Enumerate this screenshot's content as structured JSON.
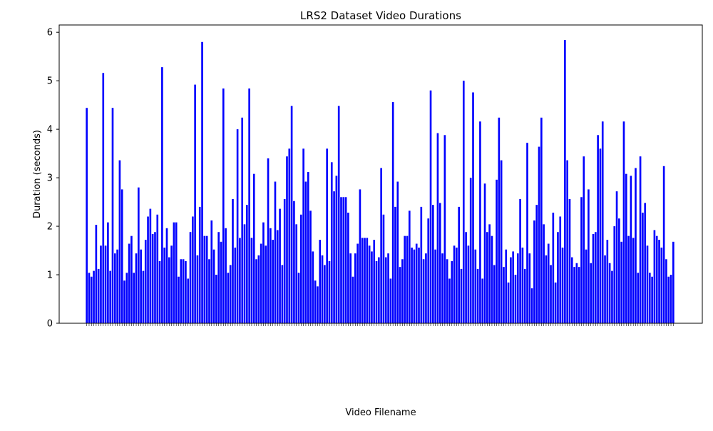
{
  "chart_data": {
    "type": "bar",
    "title": "LRS2 Dataset Video Durations",
    "xlabel": "Video Filename",
    "ylabel": "Duration (seconds)",
    "ylim": [
      0,
      6.15
    ],
    "yticks": [
      0,
      1,
      2,
      3,
      4,
      5,
      6
    ],
    "grid": false,
    "legend": "none",
    "bar_color": "#0000ff",
    "series": [
      {
        "values": [
          4.44,
          1.04,
          0.96,
          1.08,
          2.03,
          1.12,
          1.6,
          5.16,
          1.6,
          2.08,
          1.08,
          4.44,
          1.44,
          1.52,
          3.36,
          2.76,
          0.88,
          1.04,
          1.64,
          1.8,
          1.04,
          1.44,
          2.8,
          1.52,
          1.08,
          1.72,
          2.2,
          2.36,
          1.84,
          1.88,
          2.24,
          1.28,
          5.28,
          1.56,
          1.96,
          1.36,
          1.6,
          2.08,
          2.08,
          0.96,
          1.32,
          1.32,
          1.28,
          0.92,
          1.88,
          2.2,
          4.92,
          1.4,
          2.4,
          5.8,
          1.8,
          1.8,
          1.32,
          2.12,
          1.52,
          1.0,
          1.88,
          1.68,
          4.84,
          1.96,
          1.04,
          1.2,
          2.56,
          1.56,
          4.0,
          1.76,
          4.24,
          2.04,
          2.44,
          4.84,
          1.76,
          3.08,
          1.32,
          1.4,
          1.64,
          2.08,
          1.6,
          3.4,
          1.96,
          1.72,
          2.92,
          1.92,
          2.36,
          1.2,
          2.56,
          3.44,
          3.6,
          4.48,
          2.52,
          2.04,
          1.04,
          2.24,
          3.6,
          2.92,
          3.12,
          2.32,
          1.48,
          0.88,
          0.76,
          1.72,
          1.4,
          1.2,
          3.6,
          1.28,
          3.32,
          2.72,
          3.04,
          4.48,
          2.6,
          2.6,
          2.6,
          2.28,
          1.44,
          0.96,
          1.44,
          1.64,
          2.76,
          1.76,
          1.76,
          1.76,
          1.6,
          1.48,
          1.72,
          1.28,
          1.36,
          3.2,
          2.24,
          1.36,
          1.44,
          0.92,
          4.56,
          2.4,
          2.92,
          1.16,
          1.32,
          1.8,
          1.8,
          2.32,
          1.56,
          1.52,
          1.64,
          1.56,
          2.4,
          1.32,
          1.44,
          2.16,
          4.8,
          2.44,
          1.52,
          3.92,
          2.48,
          1.44,
          3.88,
          1.32,
          0.92,
          1.28,
          1.6,
          1.56,
          2.4,
          1.12,
          5.0,
          1.88,
          1.6,
          3.0,
          4.76,
          1.52,
          1.12,
          4.16,
          0.92,
          2.88,
          1.88,
          2.04,
          1.8,
          1.2,
          2.96,
          4.24,
          3.36,
          1.16,
          1.52,
          0.84,
          1.36,
          1.48,
          1.0,
          1.44,
          2.56,
          1.56,
          1.12,
          3.72,
          1.44,
          0.72,
          2.12,
          2.44,
          3.64,
          4.24,
          2.04,
          1.4,
          1.64,
          1.2,
          2.28,
          0.84,
          1.88,
          2.2,
          1.56,
          5.84,
          3.36,
          2.56,
          1.36,
          1.16,
          1.24,
          1.16,
          2.6,
          3.44,
          1.52,
          2.76,
          1.24,
          1.84,
          1.88,
          3.88,
          3.6,
          4.16,
          1.4,
          1.72,
          1.24,
          1.08,
          2.0,
          2.72,
          2.16,
          1.68,
          4.16,
          3.08,
          1.8,
          3.04,
          1.76,
          3.2,
          1.04,
          3.44,
          2.28,
          2.48,
          1.6,
          1.04,
          0.96,
          1.92,
          1.8,
          1.72,
          1.56,
          3.24,
          1.32,
          0.96,
          1.0,
          1.68
        ]
      }
    ]
  }
}
